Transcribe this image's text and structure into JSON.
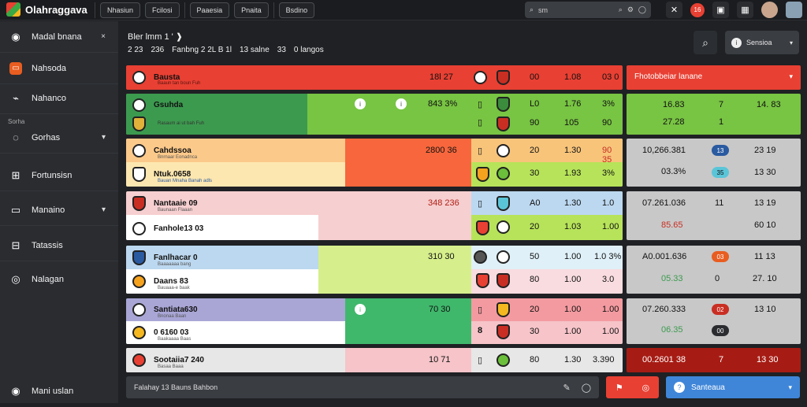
{
  "app": {
    "title": "Olahraggava"
  },
  "topnav": [
    "Nhasiun",
    "Fcilosi",
    "Paaesia",
    "Pnaita",
    "Bsdino"
  ],
  "search": {
    "placeholder": "sm"
  },
  "notif_count": "16",
  "sidebar": {
    "items": [
      {
        "label": "Madal bnana",
        "icon": "soccer-ball-icon"
      },
      {
        "label": "Nahsoda",
        "icon": "ticket-icon"
      },
      {
        "label": "Nahanco",
        "icon": "whistle-icon"
      },
      {
        "label": "Gorhas",
        "icon": "location-icon"
      },
      {
        "label": "Fortunsisn",
        "icon": "bracket-icon"
      },
      {
        "label": "Manaino",
        "icon": "card-icon"
      },
      {
        "label": "Tatassis",
        "icon": "table-icon"
      },
      {
        "label": "Nalagan",
        "icon": "circle-icon"
      }
    ],
    "group_label": "Sorha",
    "bottom_label": "Mani uslan"
  },
  "header": {
    "breadcrumb": "Bler lmm 1 ' ❱",
    "sub": [
      "2 23",
      "236",
      "Fanbng 2 2L B 1l",
      "13 salne",
      "33",
      "0 langos"
    ],
    "button_label": "Sensioa"
  },
  "matches": [
    {
      "teams": [
        "Bausta",
        "Gsuhda"
      ],
      "subs": [
        "Baaun tan boun Fuh",
        "Rasaum ai ut bah Fuh"
      ],
      "score": [
        "18l  27",
        "843  3%"
      ],
      "odds": [
        [
          "00",
          "1.08",
          "03 0"
        ],
        [
          "L0",
          "1.76",
          "3%"
        ]
      ],
      "odds2": [
        [
          "90",
          "105",
          "90"
        ]
      ]
    },
    {
      "teams": [
        "Cahdssoa",
        "Ntuk.0658"
      ],
      "subs": [
        "Bnrnaar Eonadnca",
        "Bauan Mnaha Banah adls"
      ],
      "score": [
        "2800  36",
        ""
      ],
      "odds": [
        [
          "20",
          "1.30",
          "90 35"
        ],
        [
          "30",
          "1.93",
          "3%"
        ]
      ]
    },
    {
      "teams": [
        "Nantaaie 09",
        "Fanhole13 03"
      ],
      "subs": [
        "Baunaan Flaaan",
        ""
      ],
      "score": [
        "348  236",
        ""
      ],
      "odds": [
        [
          "A0",
          "1.30",
          "1.0"
        ],
        [
          "20",
          "1.03",
          "1.00"
        ]
      ]
    },
    {
      "teams": [
        "Fanlhacar 0",
        "Daans  83"
      ],
      "subs": [
        "Baaaaaaa bang",
        "Bauaaa-e baak"
      ],
      "score": [
        "310  30",
        ""
      ],
      "odds": [
        [
          "50",
          "1.00",
          "1.0 3%"
        ],
        [
          "80",
          "1.00",
          "3.0"
        ]
      ]
    },
    {
      "teams": [
        "Santiata630",
        "0 6160 03"
      ],
      "subs": [
        "Bnonaa Baan",
        "Baakaaaa Baas"
      ],
      "score": [
        "70  30",
        ""
      ],
      "odds": [
        [
          "20",
          "1.00",
          "1.00"
        ],
        [
          "30",
          "1.00",
          "1.00"
        ]
      ]
    },
    {
      "teams": [
        "Sootaiia7 240",
        ""
      ],
      "subs": [
        "Basaa Baaa",
        ""
      ],
      "score": [
        "10  71",
        ""
      ],
      "odds": [
        [
          "80",
          "1.30",
          "3.390"
        ]
      ]
    }
  ],
  "sidepanel": {
    "first_label": "Fhotobbeiar lanane",
    "rows": [
      {
        "a": "16.83",
        "b": "7",
        "c": "14. 83",
        "a2": "27.28",
        "b2": "1"
      },
      {
        "a": "10,266.381",
        "b": "13",
        "c": "23  19",
        "a2": "03.3%",
        "pill2": "35",
        "c2": "13  30"
      },
      {
        "a": "07.261.036",
        "b": "11",
        "c": "13  19",
        "a2": "85.65",
        "c2": "60  10"
      },
      {
        "a": "A0.001.636",
        "b": "03",
        "c": "11  13",
        "a2": "05.33",
        "b2": "0",
        "c2": "27.  10"
      },
      {
        "a": "07.260.333",
        "b": "02",
        "c": "13  10",
        "a2": "06.35",
        "b2": "00"
      },
      {
        "a": "00.2601 38",
        "b": "7",
        "c": "13  30"
      }
    ]
  },
  "footer": {
    "text": "Falahay  13   Bauns Bahbon",
    "button_label": "Santeaua"
  },
  "colors": {
    "red": "#e84033",
    "green": "#3c9a4f",
    "lime": "#78c443",
    "orange": "#f7663c",
    "blue": "#3f86d9"
  }
}
